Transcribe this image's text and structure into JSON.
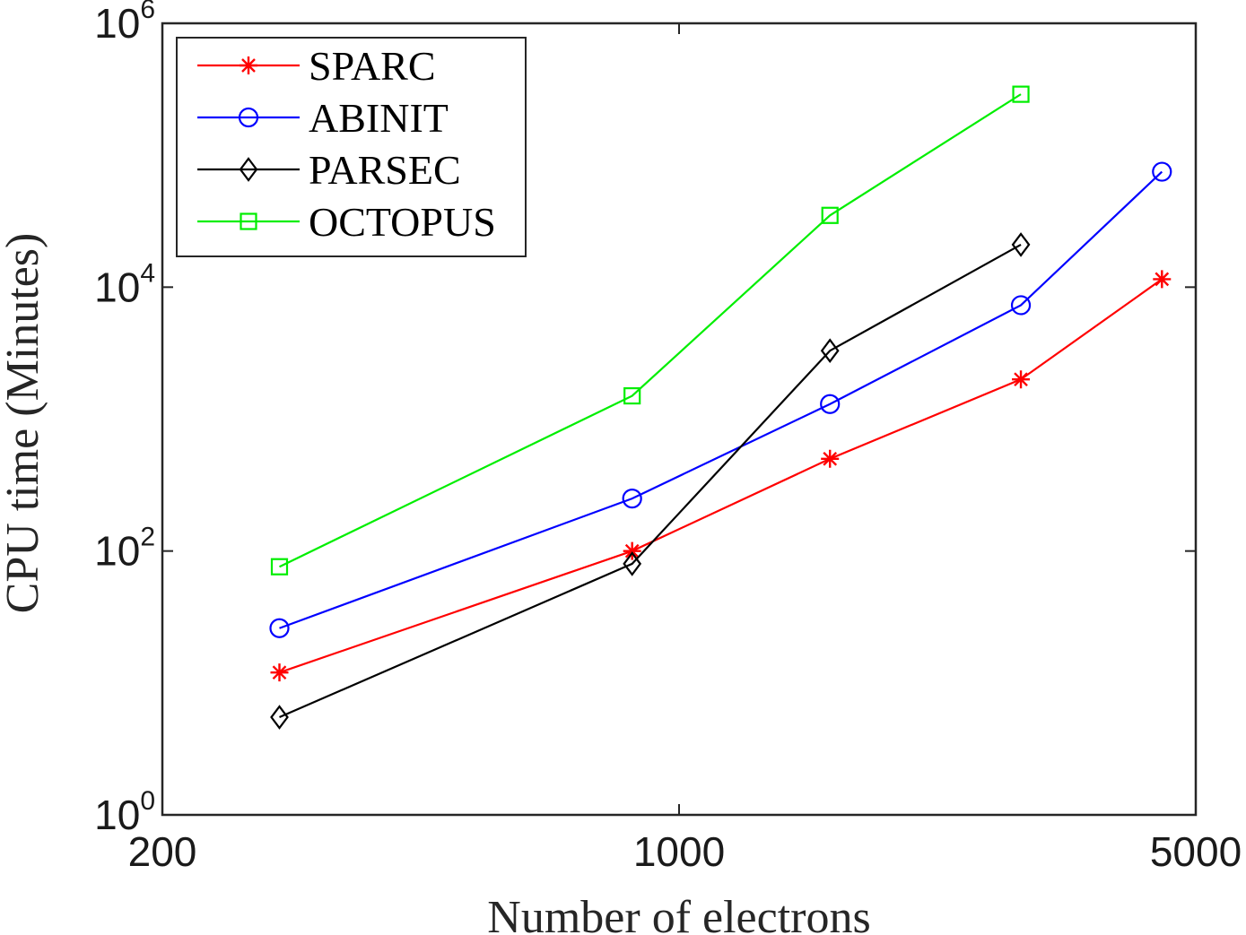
{
  "chart_data": {
    "type": "line",
    "title": "",
    "xlabel": "Number of electrons",
    "ylabel": "CPU time (Minutes)",
    "xscale": "log",
    "yscale": "log",
    "xlim": [
      200,
      5000
    ],
    "ylim": [
      1,
      1000000
    ],
    "xticks": [
      {
        "value": 200,
        "label": "200"
      },
      {
        "value": 1000,
        "label": "1000"
      },
      {
        "value": 5000,
        "label": "5000"
      }
    ],
    "yticks": [
      {
        "value": 1,
        "base": "10",
        "exp": "0"
      },
      {
        "value": 100,
        "base": "10",
        "exp": "2"
      },
      {
        "value": 10000,
        "base": "10",
        "exp": "4"
      },
      {
        "value": 1000000,
        "base": "10",
        "exp": "6"
      }
    ],
    "grid": false,
    "legend_position": "top-left",
    "series": [
      {
        "name": "SPARC",
        "color": "#ff0000",
        "marker": "asterisk",
        "x": [
          288,
          864,
          1600,
          2900,
          4500
        ],
        "y": [
          12,
          100,
          500,
          2000,
          11500
        ]
      },
      {
        "name": "ABINIT",
        "color": "#0000ff",
        "marker": "circle",
        "x": [
          288,
          864,
          1600,
          2900,
          4500
        ],
        "y": [
          26,
          250,
          1300,
          7300,
          75000
        ]
      },
      {
        "name": "PARSEC",
        "color": "#000000",
        "marker": "diamond",
        "x": [
          288,
          864,
          1600,
          2900
        ],
        "y": [
          5.5,
          80,
          3300,
          21000
        ]
      },
      {
        "name": "OCTOPUS",
        "color": "#00ee00",
        "marker": "square",
        "x": [
          288,
          864,
          1600,
          2900
        ],
        "y": [
          76,
          1500,
          35000,
          290000
        ]
      }
    ]
  }
}
